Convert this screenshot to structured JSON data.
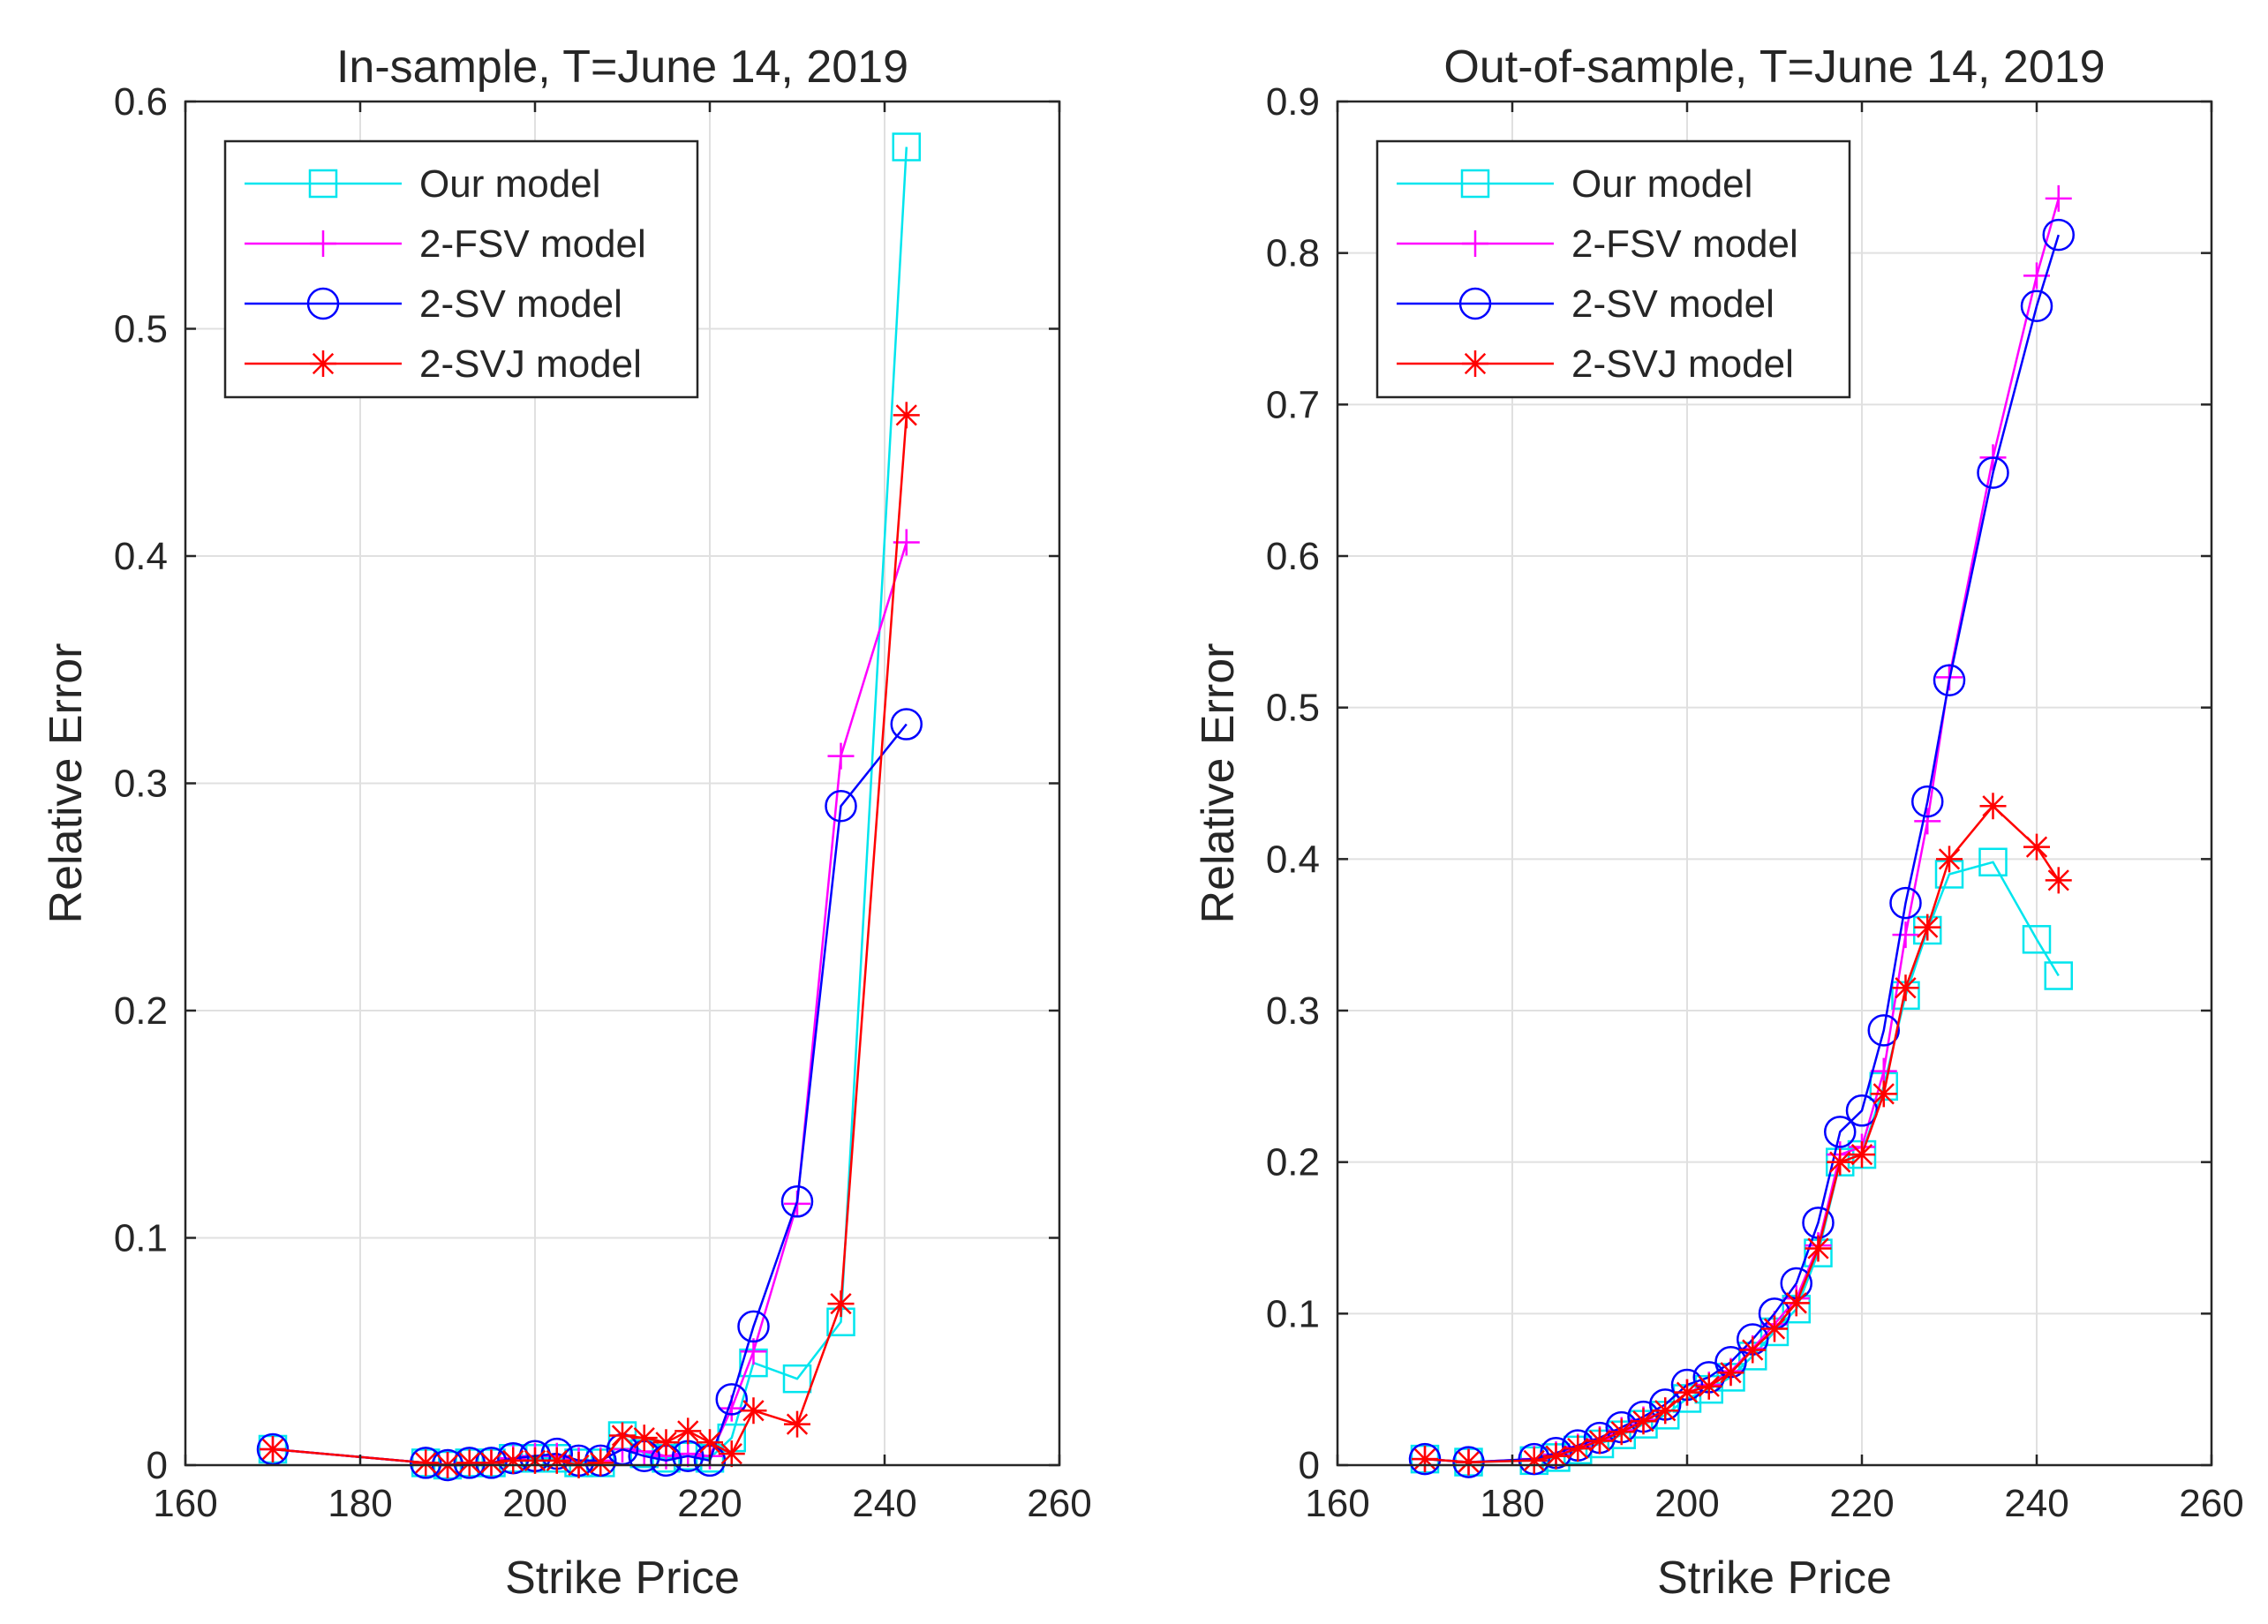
{
  "chart_data": [
    {
      "type": "line",
      "title": "In-sample, T=June 14, 2019",
      "xlabel": "Strike Price",
      "ylabel": "Relative Error",
      "xlim": [
        160,
        260
      ],
      "ylim": [
        0,
        0.6
      ],
      "xticks": [
        160,
        180,
        200,
        220,
        240,
        260
      ],
      "xtick_labels": [
        "160",
        "180",
        "200",
        "220",
        "240",
        "260"
      ],
      "yticks": [
        0,
        0.1,
        0.2,
        0.3,
        0.4,
        0.5,
        0.6
      ],
      "ytick_labels": [
        "0",
        "0.1",
        "0.2",
        "0.3",
        "0.4",
        "0.5",
        "0.6"
      ],
      "grid": true,
      "legend_position": "top-left",
      "series": [
        {
          "name": "Our model",
          "color": "#00e5ee",
          "marker": "square",
          "x": [
            170,
            187.5,
            190,
            192.5,
            195,
            197.5,
            200,
            202.5,
            205,
            207.5,
            210,
            212.5,
            215,
            217.5,
            220,
            222.5,
            225,
            230,
            235,
            242.5
          ],
          "y": [
            0.007,
            0.001,
            0.0,
            0.001,
            0.001,
            0.003,
            0.003,
            0.003,
            0.001,
            0.001,
            0.013,
            0.005,
            0.003,
            0.004,
            0.003,
            0.012,
            0.045,
            0.038,
            0.063,
            0.58
          ]
        },
        {
          "name": "2-FSV model",
          "color": "#ff00ff",
          "marker": "plus",
          "x": [
            170,
            187.5,
            190,
            192.5,
            195,
            197.5,
            200,
            202.5,
            205,
            207.5,
            210,
            212.5,
            215,
            217.5,
            220,
            222.5,
            225,
            230,
            235,
            242.5
          ],
          "y": [
            0.007,
            0.001,
            0.0,
            0.001,
            0.001,
            0.003,
            0.004,
            0.004,
            0.002,
            0.002,
            0.007,
            0.006,
            0.004,
            0.005,
            0.004,
            0.025,
            0.05,
            0.115,
            0.312,
            0.406
          ]
        },
        {
          "name": "2-SV model",
          "color": "#0000ff",
          "marker": "circle",
          "x": [
            170,
            187.5,
            190,
            192.5,
            195,
            197.5,
            200,
            202.5,
            205,
            207.5,
            210,
            212.5,
            215,
            217.5,
            220,
            222.5,
            225,
            230,
            235,
            242.5
          ],
          "y": [
            0.007,
            0.001,
            0.0,
            0.001,
            0.001,
            0.003,
            0.004,
            0.005,
            0.002,
            0.002,
            0.007,
            0.004,
            0.002,
            0.004,
            0.002,
            0.029,
            0.061,
            0.116,
            0.29,
            0.326
          ]
        },
        {
          "name": "2-SVJ model",
          "color": "#ff0000",
          "marker": "asterisk",
          "x": [
            170,
            187.5,
            190,
            192.5,
            195,
            197.5,
            200,
            202.5,
            205,
            207.5,
            210,
            212.5,
            215,
            217.5,
            220,
            222.5,
            225,
            230,
            235,
            242.5
          ],
          "y": [
            0.007,
            0.001,
            0.0,
            0.001,
            0.001,
            0.002,
            0.002,
            0.002,
            0.0,
            0.001,
            0.013,
            0.012,
            0.01,
            0.015,
            0.01,
            0.005,
            0.024,
            0.018,
            0.071,
            0.462
          ]
        }
      ]
    },
    {
      "type": "line",
      "title": "Out-of-sample, T=June 14, 2019",
      "xlabel": "Strike Price",
      "ylabel": "Relative Error",
      "xlim": [
        160,
        260
      ],
      "ylim": [
        0,
        0.9
      ],
      "xticks": [
        160,
        180,
        200,
        220,
        240,
        260
      ],
      "xtick_labels": [
        "160",
        "180",
        "200",
        "220",
        "240",
        "260"
      ],
      "yticks": [
        0,
        0.1,
        0.2,
        0.3,
        0.4,
        0.5,
        0.6,
        0.7,
        0.8,
        0.9
      ],
      "ytick_labels": [
        "0",
        "0.1",
        "0.2",
        "0.3",
        "0.4",
        "0.5",
        "0.6",
        "0.7",
        "0.8",
        "0.9"
      ],
      "grid": true,
      "legend_position": "top-left",
      "series": [
        {
          "name": "Our model",
          "color": "#00e5ee",
          "marker": "square",
          "x": [
            170,
            175,
            182.5,
            185,
            187.5,
            190,
            192.5,
            195,
            197.5,
            200,
            202.5,
            205,
            207.5,
            210,
            212.5,
            215,
            217.5,
            220,
            222.5,
            225,
            227.5,
            230,
            235,
            240,
            242.5
          ],
          "y": [
            0.004,
            0.002,
            0.003,
            0.005,
            0.01,
            0.014,
            0.02,
            0.027,
            0.033,
            0.044,
            0.05,
            0.058,
            0.072,
            0.088,
            0.103,
            0.14,
            0.2,
            0.205,
            0.25,
            0.31,
            0.353,
            0.39,
            0.398,
            0.347,
            0.323
          ]
        },
        {
          "name": "2-FSV model",
          "color": "#ff00ff",
          "marker": "plus",
          "x": [
            170,
            175,
            182.5,
            185,
            187.5,
            190,
            192.5,
            195,
            197.5,
            200,
            202.5,
            205,
            207.5,
            210,
            212.5,
            215,
            217.5,
            220,
            222.5,
            225,
            227.5,
            230,
            235,
            240,
            242.5
          ],
          "y": [
            0.004,
            0.002,
            0.004,
            0.007,
            0.012,
            0.017,
            0.023,
            0.03,
            0.036,
            0.048,
            0.053,
            0.062,
            0.077,
            0.093,
            0.11,
            0.145,
            0.205,
            0.21,
            0.26,
            0.35,
            0.425,
            0.52,
            0.665,
            0.785,
            0.836
          ]
        },
        {
          "name": "2-SV model",
          "color": "#0000ff",
          "marker": "circle",
          "x": [
            170,
            175,
            182.5,
            185,
            187.5,
            190,
            192.5,
            195,
            197.5,
            200,
            202.5,
            205,
            207.5,
            210,
            212.5,
            215,
            217.5,
            220,
            222.5,
            225,
            227.5,
            230,
            235,
            240,
            242.5
          ],
          "y": [
            0.004,
            0.002,
            0.004,
            0.008,
            0.013,
            0.018,
            0.025,
            0.032,
            0.04,
            0.053,
            0.058,
            0.068,
            0.083,
            0.1,
            0.12,
            0.16,
            0.22,
            0.234,
            0.287,
            0.371,
            0.438,
            0.518,
            0.655,
            0.765,
            0.812
          ]
        },
        {
          "name": "2-SVJ model",
          "color": "#ff0000",
          "marker": "asterisk",
          "x": [
            170,
            175,
            182.5,
            185,
            187.5,
            190,
            192.5,
            195,
            197.5,
            200,
            202.5,
            205,
            207.5,
            210,
            212.5,
            215,
            217.5,
            220,
            222.5,
            225,
            227.5,
            230,
            235,
            240,
            242.5
          ],
          "y": [
            0.004,
            0.002,
            0.003,
            0.006,
            0.011,
            0.016,
            0.022,
            0.029,
            0.036,
            0.048,
            0.052,
            0.061,
            0.076,
            0.09,
            0.107,
            0.143,
            0.2,
            0.205,
            0.245,
            0.315,
            0.355,
            0.4,
            0.435,
            0.408,
            0.386
          ]
        }
      ]
    }
  ]
}
